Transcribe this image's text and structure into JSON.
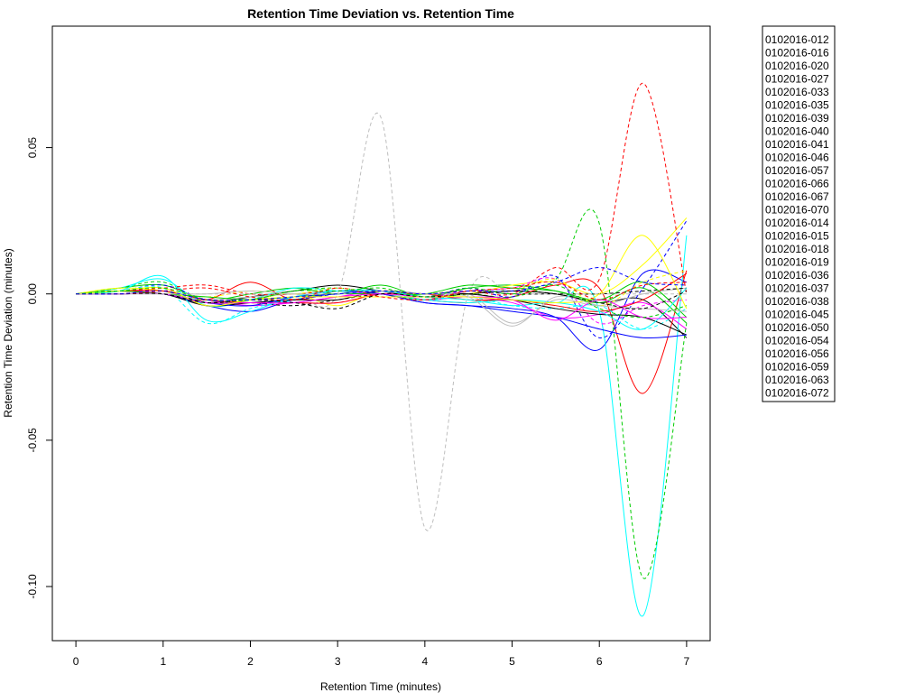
{
  "chart_data": {
    "type": "line",
    "title": "Retention Time Deviation vs. Retention Time",
    "xlabel": "Retention Time (minutes)",
    "ylabel": "Retention Time Deviation (minutes)",
    "xlim": [
      -0.27,
      7.27
    ],
    "ylim": [
      -0.1185,
      0.0915
    ],
    "xticks": [
      0,
      1,
      2,
      3,
      4,
      5,
      6,
      7
    ],
    "xtick_labels": [
      "0",
      "1",
      "2",
      "3",
      "4",
      "5",
      "6",
      "7"
    ],
    "yticks": [
      -0.1,
      -0.05,
      0.0,
      0.05
    ],
    "ytick_labels": [
      "-0.10",
      "-0.05",
      "0.00",
      "0.05"
    ],
    "grid": false,
    "legend_position": "top-right outside",
    "x": [
      0,
      0.5,
      1,
      1.5,
      2,
      2.5,
      3,
      3.5,
      4,
      4.5,
      5,
      5.5,
      6,
      6.5,
      7
    ],
    "series": [
      {
        "name": "0102016-012",
        "color": "#000000",
        "dash": "solid",
        "values": [
          0,
          0.001,
          0.0,
          -0.003,
          -0.001,
          0.001,
          0.003,
          0.001,
          -0.001,
          0.0,
          0.001,
          0.0,
          -0.003,
          -0.002,
          -0.015
        ]
      },
      {
        "name": "0102016-016",
        "color": "#ff0000",
        "dash": "solid",
        "values": [
          0,
          0.001,
          0.0,
          -0.002,
          0.004,
          -0.002,
          0.001,
          0.0,
          -0.002,
          -0.003,
          -0.001,
          0.003,
          0.002,
          -0.034,
          0.008
        ]
      },
      {
        "name": "0102016-020",
        "color": "#00cd00",
        "dash": "solid",
        "values": [
          0,
          0.002,
          0.003,
          -0.002,
          0.0,
          0.002,
          0.0,
          0.003,
          -0.001,
          0.002,
          0.003,
          0.001,
          -0.003,
          0.002,
          -0.01
        ]
      },
      {
        "name": "0102016-027",
        "color": "#0000ff",
        "dash": "solid",
        "values": [
          0,
          0.0,
          0.0,
          -0.004,
          -0.006,
          -0.002,
          0.0,
          0.0,
          -0.003,
          -0.004,
          -0.005,
          -0.008,
          -0.019,
          0.007,
          0.004
        ]
      },
      {
        "name": "0102016-033",
        "color": "#00ffff",
        "dash": "solid",
        "values": [
          0,
          0.002,
          0.005,
          -0.004,
          -0.002,
          0.002,
          0.001,
          0.0,
          -0.002,
          -0.003,
          -0.002,
          -0.003,
          -0.006,
          -0.11,
          0.02
        ]
      },
      {
        "name": "0102016-035",
        "color": "#ff00ff",
        "dash": "solid",
        "values": [
          0,
          0.001,
          0.001,
          -0.002,
          -0.004,
          -0.003,
          -0.001,
          0.001,
          -0.002,
          -0.001,
          -0.003,
          -0.008,
          -0.007,
          -0.003,
          -0.012
        ]
      },
      {
        "name": "0102016-039",
        "color": "#ffff00",
        "dash": "solid",
        "values": [
          0,
          0.002,
          0.001,
          -0.003,
          -0.002,
          0.0,
          -0.004,
          0.001,
          -0.001,
          0.0,
          0.003,
          0.004,
          0.0,
          0.01,
          0.026
        ]
      },
      {
        "name": "0102016-040",
        "color": "#bebebe",
        "dash": "solid",
        "values": [
          0,
          0.0,
          0.0,
          -0.002,
          -0.001,
          0.0,
          0.001,
          0.0,
          -0.002,
          0.0,
          -0.01,
          -0.002,
          -0.004,
          0.0,
          0.002
        ]
      },
      {
        "name": "0102016-041",
        "color": "#000000",
        "dash": "dashed",
        "values": [
          0,
          0.001,
          0.001,
          -0.003,
          -0.003,
          -0.004,
          -0.002,
          0.0,
          0.0,
          0.001,
          0.0,
          0.0,
          0.0,
          0.001,
          0.002
        ]
      },
      {
        "name": "0102016-046",
        "color": "#ff0000",
        "dash": "dashed",
        "values": [
          0,
          0.001,
          0.002,
          0.003,
          0.0,
          0.0,
          0.001,
          0.001,
          0.0,
          0.001,
          0.0,
          0.009,
          0.005,
          0.072,
          0.0
        ]
      },
      {
        "name": "0102016-057",
        "color": "#00cd00",
        "dash": "dashed",
        "values": [
          0,
          0.002,
          0.004,
          -0.003,
          -0.002,
          0.001,
          0.002,
          0.0,
          -0.002,
          0.0,
          -0.001,
          0.005,
          0.024,
          -0.097,
          -0.01
        ]
      },
      {
        "name": "0102016-066",
        "color": "#0000ff",
        "dash": "dashed",
        "values": [
          0,
          0.001,
          0.003,
          -0.002,
          -0.003,
          -0.002,
          0.0,
          0.001,
          -0.001,
          0.002,
          -0.001,
          0.006,
          -0.015,
          0.002,
          0.025
        ]
      },
      {
        "name": "0102016-067",
        "color": "#00ffff",
        "dash": "dashed",
        "values": [
          0,
          0.001,
          0.002,
          -0.01,
          -0.005,
          -0.002,
          0.001,
          0.001,
          -0.002,
          -0.001,
          -0.004,
          -0.005,
          -0.004,
          -0.012,
          -0.005
        ]
      },
      {
        "name": "0102016-070",
        "color": "#ff00ff",
        "dash": "dashed",
        "values": [
          0,
          0.0,
          0.001,
          -0.002,
          -0.002,
          -0.003,
          -0.003,
          0.0,
          -0.001,
          0.001,
          0.002,
          0.005,
          -0.01,
          -0.004,
          -0.002
        ]
      },
      {
        "name": "0102016-014",
        "color": "#ffff00",
        "dash": "dashed",
        "values": [
          0,
          0.002,
          0.001,
          -0.001,
          0.001,
          0.0,
          0.002,
          0.0,
          0.0,
          0.001,
          0.001,
          0.005,
          -0.004,
          0.004,
          0.008
        ]
      },
      {
        "name": "0102016-015",
        "color": "#bebebe",
        "dash": "dashed",
        "values": [
          0,
          0.0,
          0.0,
          0.0,
          0.0,
          0.0,
          0.0,
          0.06,
          -0.08,
          0.0,
          0.0,
          0.0,
          0.0,
          0.0,
          0.0
        ]
      },
      {
        "name": "0102016-018",
        "color": "#000000",
        "dash": "solid",
        "values": [
          0,
          0.0,
          0.0,
          -0.004,
          -0.003,
          -0.002,
          -0.002,
          0.001,
          0.0,
          0.0,
          -0.002,
          -0.005,
          -0.007,
          -0.008,
          -0.014
        ]
      },
      {
        "name": "0102016-019",
        "color": "#ff0000",
        "dash": "solid",
        "values": [
          0,
          0.001,
          0.001,
          -0.002,
          -0.003,
          -0.003,
          -0.003,
          0.0,
          0.0,
          -0.002,
          -0.002,
          -0.004,
          -0.006,
          -0.002,
          0.007
        ]
      },
      {
        "name": "0102016-036",
        "color": "#00cd00",
        "dash": "solid",
        "values": [
          0,
          0.001,
          0.0,
          -0.001,
          -0.002,
          -0.001,
          0.0,
          0.0,
          0.0,
          0.003,
          0.002,
          0.001,
          -0.002,
          0.004,
          -0.008
        ]
      },
      {
        "name": "0102016-037",
        "color": "#0000ff",
        "dash": "solid",
        "values": [
          0,
          0.0,
          0.0,
          -0.003,
          -0.004,
          -0.001,
          0.001,
          0.0,
          -0.003,
          -0.004,
          -0.006,
          -0.008,
          -0.012,
          -0.015,
          -0.014
        ]
      },
      {
        "name": "0102016-038",
        "color": "#00ffff",
        "dash": "solid",
        "values": [
          0,
          0.001,
          0.006,
          -0.009,
          -0.006,
          -0.001,
          0.001,
          0.001,
          -0.001,
          -0.002,
          -0.004,
          -0.003,
          -0.006,
          -0.012,
          0.002
        ]
      },
      {
        "name": "0102016-045",
        "color": "#ff00ff",
        "dash": "solid",
        "values": [
          0,
          0.0,
          0.0,
          -0.003,
          -0.003,
          -0.003,
          -0.001,
          0.0,
          -0.001,
          -0.001,
          -0.002,
          -0.009,
          -0.002,
          -0.008,
          -0.008
        ]
      },
      {
        "name": "0102016-050",
        "color": "#ffff00",
        "dash": "solid",
        "values": [
          0,
          0.001,
          0.002,
          -0.004,
          -0.002,
          -0.001,
          -0.001,
          -0.001,
          -0.001,
          -0.001,
          -0.002,
          -0.003,
          0.0,
          0.02,
          -0.005
        ]
      },
      {
        "name": "0102016-054",
        "color": "#bebebe",
        "dash": "solid",
        "values": [
          0,
          0.0,
          0.0,
          0.0,
          0.001,
          0.0,
          0.0,
          0.001,
          0.0,
          -0.001,
          -0.011,
          -0.001,
          -0.004,
          -0.005,
          -0.006
        ]
      },
      {
        "name": "0102016-056",
        "color": "#000000",
        "dash": "dashed",
        "values": [
          0,
          0.0,
          0.0,
          -0.003,
          -0.002,
          -0.003,
          -0.005,
          0.0,
          -0.001,
          0.0,
          0.001,
          0.0,
          -0.003,
          -0.005,
          0.001
        ]
      },
      {
        "name": "0102016-059",
        "color": "#ff0000",
        "dash": "dashed",
        "values": [
          0,
          0.0,
          0.001,
          0.002,
          -0.001,
          -0.002,
          0.002,
          -0.001,
          -0.002,
          0.001,
          0.002,
          0.004,
          -0.002,
          0.003,
          0.004
        ]
      },
      {
        "name": "0102016-063",
        "color": "#00cd00",
        "dash": "dashed",
        "values": [
          0,
          0.001,
          0.002,
          -0.002,
          -0.002,
          0.001,
          0.001,
          0.002,
          -0.001,
          0.002,
          0.0,
          0.003,
          -0.005,
          -0.008,
          -0.004
        ]
      },
      {
        "name": "0102016-072",
        "color": "#0000ff",
        "dash": "dashed",
        "values": [
          0,
          0.0,
          0.001,
          -0.002,
          -0.002,
          -0.001,
          0.0,
          0.001,
          0.0,
          0.001,
          0.001,
          0.004,
          0.009,
          0.004,
          0.003
        ]
      }
    ]
  }
}
